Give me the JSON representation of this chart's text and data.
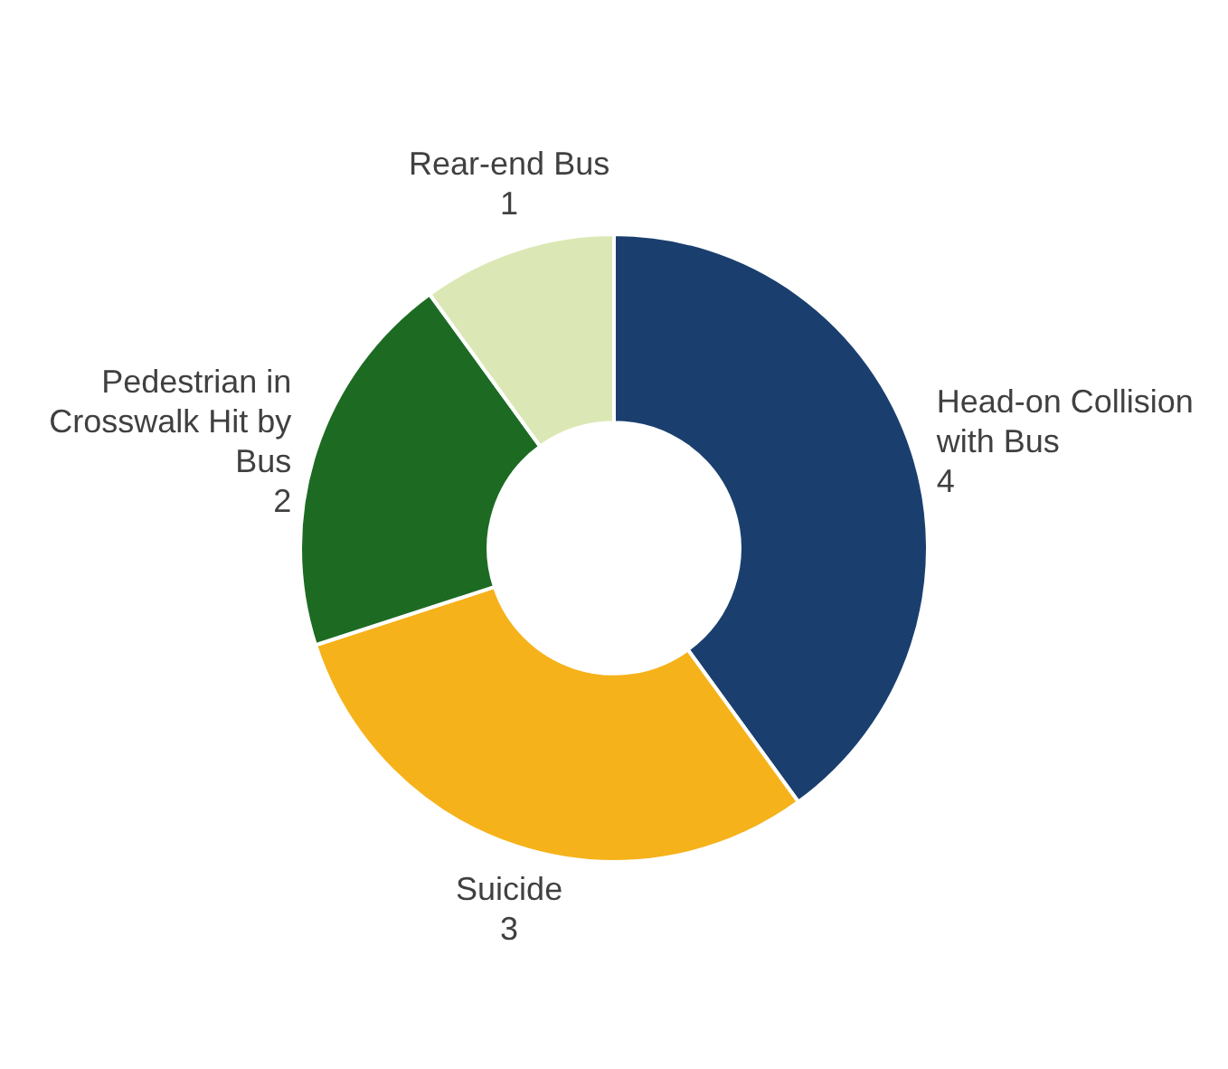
{
  "chart_data": {
    "type": "donut",
    "categories": [
      "Head-on Collision with Bus",
      "Suicide",
      "Pedestrian in Crosswalk Hit by Bus",
      "Rear-end Bus"
    ],
    "values": [
      4,
      3,
      2,
      1
    ],
    "colors": [
      "#1a3f6f",
      "#f6b21a",
      "#1d6b23",
      "#dbe8b5"
    ],
    "data_labels": true,
    "legend": false
  }
}
